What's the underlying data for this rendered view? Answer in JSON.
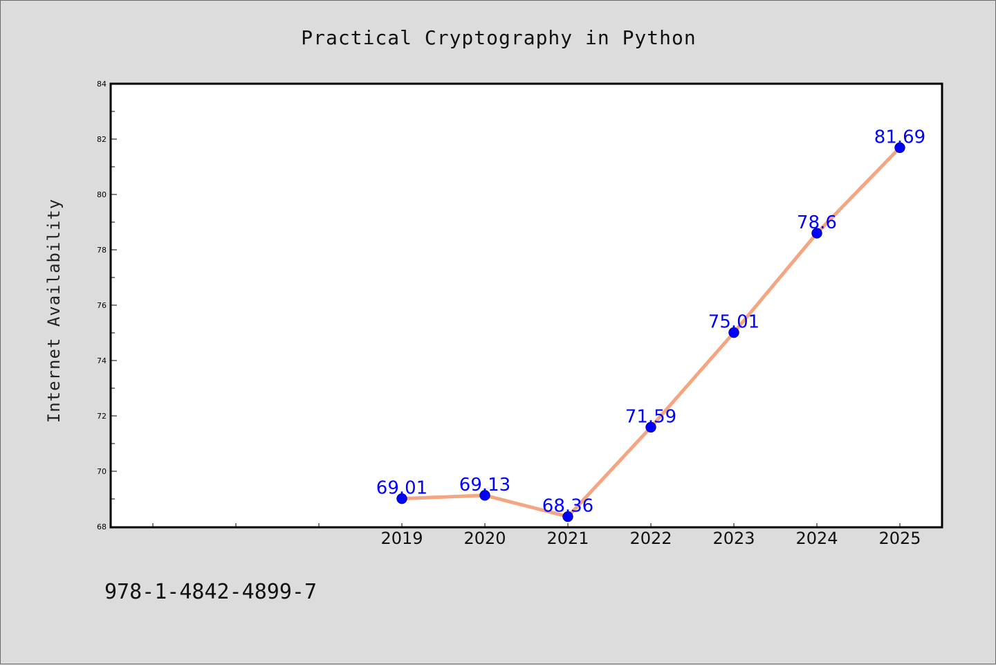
{
  "chart_data": {
    "type": "line",
    "title": "Practical Cryptography in Python",
    "xlabel": "",
    "ylabel": "Internet Availability",
    "categories": [
      "2019",
      "2020",
      "2021",
      "2022",
      "2023",
      "2024",
      "2025"
    ],
    "series": [
      {
        "values": [
          69.01,
          69.13,
          68.36,
          71.59,
          75.01,
          78.6,
          81.69
        ],
        "labels": [
          "69.01",
          "69.13",
          "68.36",
          "71.59",
          "75.01",
          "78.6",
          "81.69"
        ]
      }
    ],
    "ylim": [
      68,
      84
    ],
    "yticks": [
      68,
      70,
      72,
      74,
      76,
      78,
      80,
      82,
      84
    ],
    "ytick_labels": [
      "68",
      "70",
      "72",
      "74",
      "76",
      "78",
      "80",
      "82",
      "84"
    ],
    "x_slots": 10,
    "grid": false,
    "colors": {
      "line": "#f4a582",
      "marker": "#0000ff",
      "label": "#0000ff",
      "background": "#dcdcdc",
      "plot_background": "#ffffff"
    },
    "footer_text": "978-1-4842-4899-7"
  }
}
